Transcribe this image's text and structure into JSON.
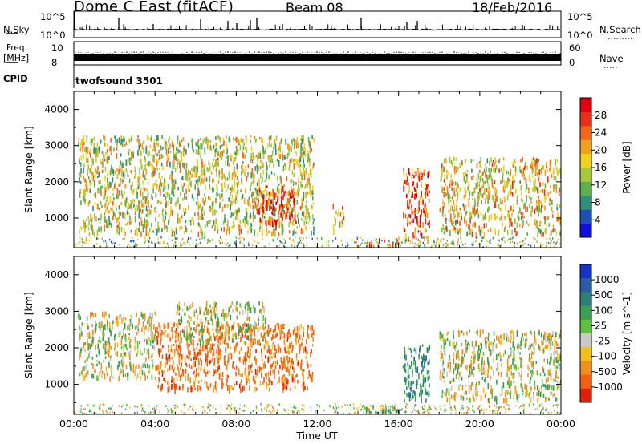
{
  "header": {
    "station": "Dome C East (fitACF)",
    "beam": "Beam 08",
    "date": "18/Feb/2016"
  },
  "strips": {
    "nsky_label": "N.Sky",
    "nsearch_label": "N.Search",
    "nsky_ticks": [
      "10^5",
      "10^0"
    ],
    "nsearch_ticks": [
      "10^5",
      "10^0"
    ],
    "freq_label_1": "Freq.",
    "freq_label_2": "[MHz]",
    "freq_ticks": [
      "10",
      "8"
    ],
    "nave_label": "Nave",
    "nave_ticks": [
      "60",
      "0"
    ],
    "cpid_label": "CPID",
    "cpid_value": "twofsound 3501"
  },
  "chart_data": [
    {
      "type": "heatmap",
      "name": "power",
      "xlabel": "",
      "ylabel": "Slant Range [km]",
      "xlim_hours": [
        0,
        24
      ],
      "ylim_km": [
        180,
        4500
      ],
      "yticks": [
        "1000",
        "2000",
        "3000",
        "4000"
      ],
      "colorbar_label": "Power [dB]",
      "colorbar_ticks": [
        "4",
        "8",
        "12",
        "16",
        "20",
        "24",
        "28"
      ],
      "colorbar_colors": [
        "#1010d8",
        "#1e4fb8",
        "#2f8f7a",
        "#5fb04a",
        "#a8c838",
        "#f0d020",
        "#f0a020",
        "#f06818",
        "#e83018",
        "#e00010"
      ],
      "echo_regions": [
        {
          "t_start": 0.2,
          "t_end": 11.8,
          "r_min": 600,
          "r_max": 3300,
          "level_db": 16
        },
        {
          "t_start": 9.0,
          "t_end": 11.0,
          "r_min": 900,
          "r_max": 1900,
          "level_db": 28
        },
        {
          "t_start": 12.7,
          "t_end": 13.3,
          "r_min": 700,
          "r_max": 1400,
          "level_db": 20
        },
        {
          "t_start": 14.3,
          "t_end": 16.0,
          "r_min": 180,
          "r_max": 450,
          "level_db": 28
        },
        {
          "t_start": 16.2,
          "t_end": 17.5,
          "r_min": 450,
          "r_max": 2400,
          "level_db": 26
        },
        {
          "t_start": 18.0,
          "t_end": 24.0,
          "r_min": 600,
          "r_max": 2700,
          "level_db": 18
        }
      ]
    },
    {
      "type": "heatmap",
      "name": "velocity",
      "xlabel": "Time UT",
      "ylabel": "Slant Range [km]",
      "xlim_hours": [
        0,
        24
      ],
      "ylim_km": [
        180,
        4500
      ],
      "xticks": [
        "00:00",
        "04:00",
        "08:00",
        "12:00",
        "16:00",
        "20:00",
        "00:00"
      ],
      "yticks": [
        "1000",
        "2000",
        "3000",
        "4000"
      ],
      "colorbar_label": "Velocity [m s^-1]",
      "colorbar_ticks": [
        "1000",
        "500",
        "100",
        "25",
        "-25",
        "-100",
        "-500",
        "-1000"
      ],
      "colorbar_colors": [
        "#1434c8",
        "#2a5ca8",
        "#2e7f7a",
        "#3aa050",
        "#60c040",
        "#c8c8c8",
        "#f0c020",
        "#f09020",
        "#f06010",
        "#e02010"
      ],
      "echo_regions": [
        {
          "t_start": 0.2,
          "t_end": 4.0,
          "r_min": 1200,
          "r_max": 3000,
          "velocity": 0
        },
        {
          "t_start": 4.0,
          "t_end": 11.8,
          "r_min": 900,
          "r_max": 2700,
          "velocity": -300
        },
        {
          "t_start": 5.0,
          "t_end": 9.5,
          "r_min": 2200,
          "r_max": 3300,
          "velocity": 0
        },
        {
          "t_start": 14.3,
          "t_end": 16.3,
          "r_min": 180,
          "r_max": 450,
          "velocity": 150
        },
        {
          "t_start": 16.2,
          "t_end": 17.5,
          "r_min": 600,
          "r_max": 2100,
          "velocity": 300
        },
        {
          "t_start": 18.0,
          "t_end": 24.0,
          "r_min": 600,
          "r_max": 2500,
          "velocity": 0
        }
      ]
    }
  ]
}
